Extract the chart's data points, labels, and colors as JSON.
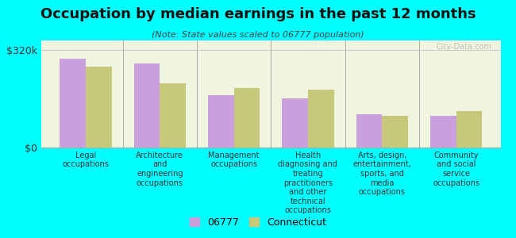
{
  "title": "Occupation by median earnings in the past 12 months",
  "subtitle": "(Note: State values scaled to 06777 population)",
  "categories": [
    "Legal\noccupations",
    "Architecture\nand\nengineering\noccupations",
    "Management\noccupations",
    "Health\ndiagnosing and\ntreating\npractitioners\nand other\ntechnical\noccupations",
    "Arts, design,\nentertainment,\nsports, and\nmedia\noccupations",
    "Community\nand social\nservice\noccupations"
  ],
  "values_06777": [
    290000,
    275000,
    170000,
    160000,
    110000,
    105000
  ],
  "values_ct": [
    265000,
    210000,
    195000,
    190000,
    105000,
    120000
  ],
  "color_06777": "#c9a0dc",
  "color_ct": "#c8c87a",
  "ylabel": "$0",
  "ytick_label": "$320k",
  "ylim": [
    0,
    350000
  ],
  "yticks": [
    0,
    320000
  ],
  "ytick_labels": [
    "$0",
    "$320k"
  ],
  "background_color": "#00ffff",
  "plot_bg_color": "#f0f5e0",
  "legend_06777": "06777",
  "legend_ct": "Connecticut",
  "watermark": "City-Data.com"
}
